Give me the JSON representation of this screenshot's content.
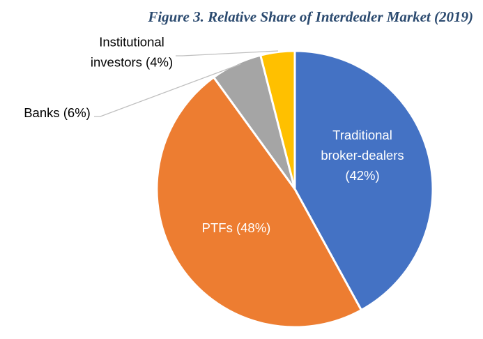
{
  "title": "Figure 3. Relative Share of Interdealer Market (2019)",
  "chart_data": {
    "type": "pie",
    "title": "Figure 3. Relative Share of Interdealer Market (2019)",
    "slices": [
      {
        "name": "Traditional broker-dealers",
        "value": 42,
        "label_lines": [
          "Traditional",
          "broker-dealers",
          "(42%)"
        ],
        "color": "#4472c4",
        "label_color": "#ffffff"
      },
      {
        "name": "PTFs",
        "value": 48,
        "label_lines": [
          "PTFs (48%)"
        ],
        "color": "#ed7d31",
        "label_color": "#ffffff"
      },
      {
        "name": "Banks",
        "value": 6,
        "label_lines": [
          "Banks (6%)"
        ],
        "color": "#a5a5a5",
        "label_color": "#000000"
      },
      {
        "name": "Institutional investors",
        "value": 4,
        "label_lines": [
          "Institutional",
          "investors (4%)"
        ],
        "color": "#ffc000",
        "label_color": "#000000"
      }
    ]
  }
}
